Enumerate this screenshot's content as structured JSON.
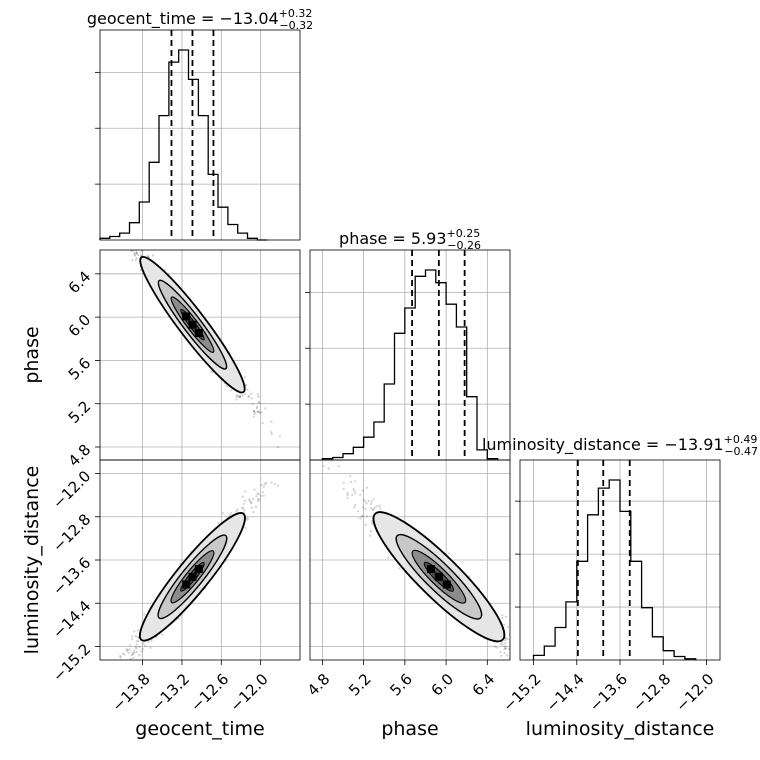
{
  "chart_data": {
    "type": "corner",
    "parameters": [
      "geocent_time",
      "phase",
      "luminosity_distance"
    ],
    "axis_labels": [
      "geocent_time",
      "phase",
      "luminosity_distance"
    ],
    "titles": [
      {
        "param": "geocent_time",
        "prefix": "geocent_time = ",
        "median": "−13.04",
        "plus": "+0.32",
        "minus": "−0.32"
      },
      {
        "param": "phase",
        "prefix": "phase = ",
        "median": "5.93",
        "plus": "+0.25",
        "minus": "−0.26"
      },
      {
        "param": "luminosity_distance",
        "prefix": "luminosity_distance = ",
        "median": "−13.91",
        "plus": "+0.49",
        "minus": "−0.47"
      }
    ],
    "ranges": {
      "geocent_time": [
        -14.45,
        -11.4
      ],
      "phase": [
        4.68,
        6.62
      ],
      "luminosity_distance": [
        -15.45,
        -11.75
      ]
    },
    "ticks": {
      "geocent_time": [
        -13.8,
        -13.2,
        -12.6,
        -12.0
      ],
      "phase": [
        4.8,
        5.2,
        5.6,
        6.0,
        6.4
      ],
      "luminosity_distance": [
        -15.2,
        -14.4,
        -13.6,
        -12.8,
        -12.0
      ]
    },
    "tick_labels": {
      "geocent_time": [
        "−13.8",
        "−13.2",
        "−12.6",
        "−12.0"
      ],
      "phase": [
        "4.8",
        "5.2",
        "5.6",
        "6.0",
        "6.4"
      ],
      "luminosity_distance": [
        "−15.2",
        "−14.4",
        "−13.6",
        "−12.8",
        "−12.0"
      ]
    },
    "quantiles": {
      "geocent_time": [
        -13.36,
        -13.04,
        -12.72
      ],
      "phase": [
        5.67,
        5.93,
        6.18
      ],
      "luminosity_distance": [
        -14.38,
        -13.91,
        -13.42
      ]
    },
    "histograms": {
      "geocent_time": {
        "edges": [
          -14.45,
          -14.3,
          -14.15,
          -14.0,
          -13.85,
          -13.7,
          -13.55,
          -13.4,
          -13.25,
          -13.1,
          -12.95,
          -12.8,
          -12.65,
          -12.5,
          -12.35,
          -12.2,
          -12.05,
          -11.9
        ],
        "counts": [
          1,
          2,
          4,
          10,
          22,
          45,
          72,
          103,
          110,
          93,
          72,
          38,
          19,
          9,
          4,
          1,
          0
        ]
      },
      "phase": {
        "edges": [
          4.8,
          4.9,
          5.0,
          5.1,
          5.2,
          5.3,
          5.4,
          5.5,
          5.6,
          5.7,
          5.8,
          5.9,
          6.0,
          6.1,
          6.2,
          6.3,
          6.4,
          6.5
        ],
        "counts": [
          1,
          2,
          5,
          10,
          18,
          30,
          60,
          100,
          120,
          145,
          150,
          140,
          123,
          105,
          50,
          8,
          1
        ]
      },
      "luminosity_distance": {
        "edges": [
          -15.2,
          -15.0,
          -14.8,
          -14.6,
          -14.4,
          -14.2,
          -14.0,
          -13.8,
          -13.6,
          -13.4,
          -13.2,
          -13.0,
          -12.8,
          -12.6,
          -12.4,
          -12.2
        ],
        "counts": [
          4,
          12,
          28,
          50,
          85,
          125,
          148,
          155,
          128,
          85,
          45,
          20,
          8,
          3,
          1
        ]
      }
    },
    "correlations": {
      "phase_vs_geocent_time": -0.98,
      "luminosity_distance_vs_geocent_time": 0.97,
      "luminosity_distance_vs_phase": -0.96
    },
    "grid": true,
    "colors": {
      "hist": "#000000",
      "quantile": "#000000",
      "points": "#000000",
      "grid": "#b0b0b0"
    }
  }
}
